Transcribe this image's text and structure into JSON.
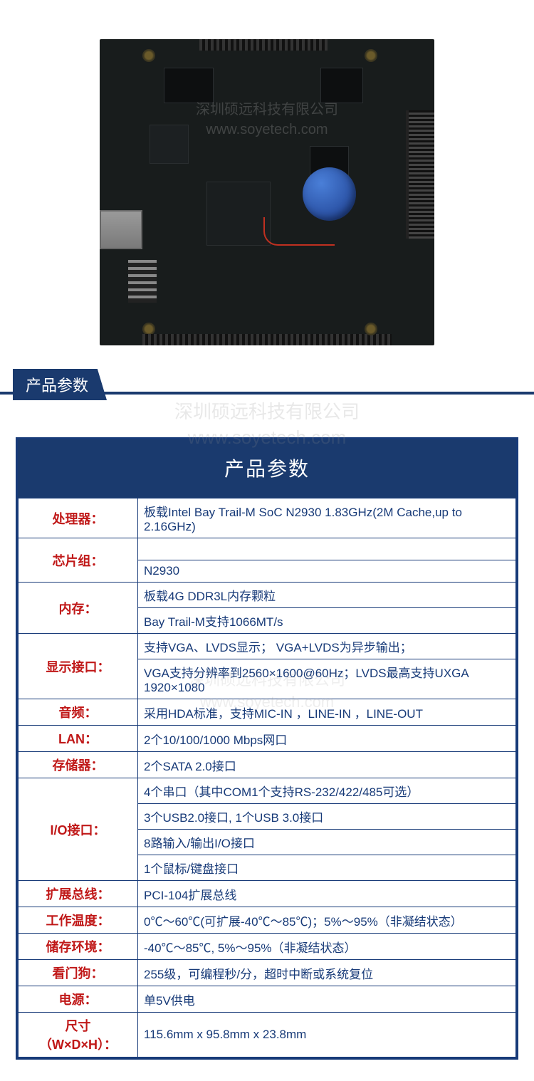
{
  "watermark": {
    "line1": "深圳硕远科技有限公司",
    "line2": "www.soyetech.com"
  },
  "section_tab": "产品参数",
  "table_title": "产品参数",
  "colors": {
    "primary": "#1a3a6e",
    "border": "#173a78",
    "label_text": "#c01818",
    "value_text": "#173a78",
    "background": "#ffffff"
  },
  "specs": [
    {
      "label": "处理器：",
      "values": [
        "板载Intel Bay Trail-M SoC  N2930 1.83GHz(2M Cache,up to 2.16GHz)"
      ]
    },
    {
      "label": "芯片组：",
      "values": [
        "",
        "N2930"
      ]
    },
    {
      "label": "内存：",
      "values": [
        "板载4G DDR3L内存颗粒",
        "Bay Trail-M支持1066MT/s"
      ]
    },
    {
      "label": "显示接口：",
      "values": [
        "支持VGA、LVDS显示； VGA+LVDS为异步输出；",
        "VGA支持分辨率到2560×1600@60Hz；LVDS最高支持UXGA 1920×1080"
      ]
    },
    {
      "label": "音频：",
      "values": [
        "采用HDA标准，支持MIC-IN ，LINE-IN ，LINE-OUT"
      ]
    },
    {
      "label": "LAN：",
      "values": [
        "2个10/100/1000 Mbps网口"
      ]
    },
    {
      "label": "存储器：",
      "values": [
        "2个SATA 2.0接口"
      ]
    },
    {
      "label": "I/O接口：",
      "values": [
        "4个串口（其中COM1个支持RS-232/422/485可选）",
        "3个USB2.0接口, 1个USB 3.0接口",
        "8路输入/输出I/O接口",
        "1个鼠标/键盘接口"
      ]
    },
    {
      "label": "扩展总线：",
      "values": [
        "PCI-104扩展总线"
      ]
    },
    {
      "label": "工作温度：",
      "values": [
        "0℃～60℃(可扩展-40℃～85℃)；5%～95%（非凝结状态）"
      ]
    },
    {
      "label": "储存环境：",
      "values": [
        "-40℃～85℃, 5%～95%（非凝结状态）"
      ]
    },
    {
      "label": "看门狗：",
      "values": [
        "255级，可编程秒/分，超时中断或系统复位"
      ]
    },
    {
      "label": "电源：",
      "values": [
        "单5V供电"
      ]
    },
    {
      "label": "尺寸\n（W×D×H）：",
      "values": [
        "115.6mm x 95.8mm x 23.8mm"
      ]
    }
  ]
}
